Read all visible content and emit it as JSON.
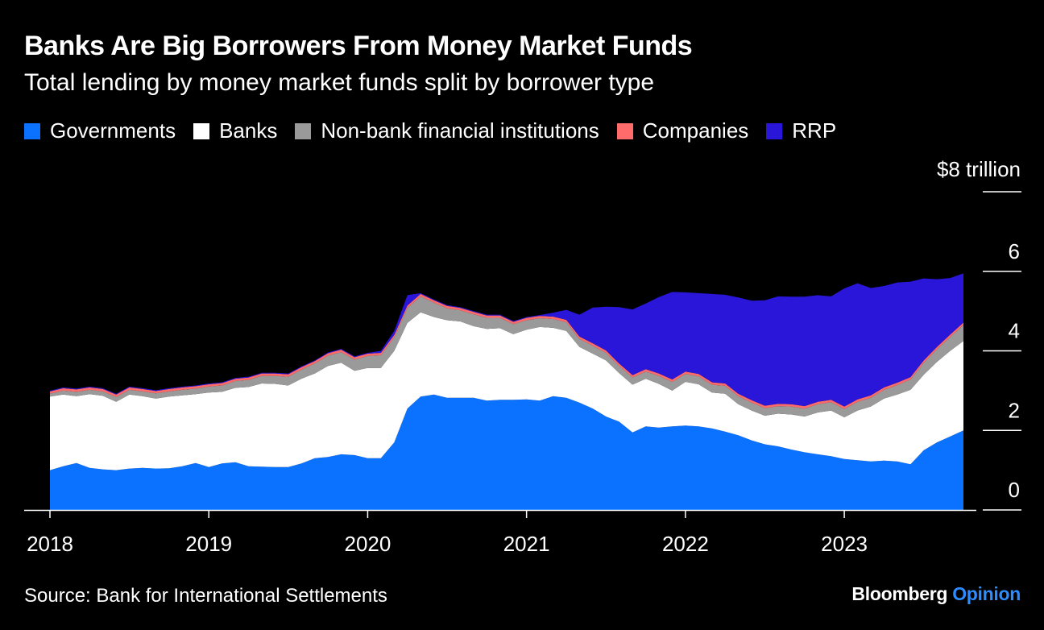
{
  "chart_data": {
    "type": "area",
    "stacked": true,
    "title": "Banks Are Big Borrowers From Money Market Funds",
    "subtitle": "Total lending by money market funds split by borrower type",
    "unit_label": "$8 trillion",
    "ylim": [
      0,
      8
    ],
    "yticks": [
      0,
      2,
      4,
      6,
      8
    ],
    "ytick_labels": [
      "0",
      "2",
      "4",
      "",
      ""
    ],
    "ytick_label_values": [
      0,
      2,
      4,
      6
    ],
    "ytick_label_texts": [
      "0",
      "2",
      "4",
      "6"
    ],
    "xlim": [
      2018.0,
      2023.75
    ],
    "xticks": [
      2018,
      2019,
      2020,
      2021,
      2022,
      2023
    ],
    "xtick_labels": [
      "2018",
      "2019",
      "2020",
      "2021",
      "2022",
      "2023"
    ],
    "legend_position": "top",
    "grid": false,
    "x": [
      2018.0,
      2018.083,
      2018.167,
      2018.25,
      2018.333,
      2018.417,
      2018.5,
      2018.583,
      2018.667,
      2018.75,
      2018.833,
      2018.917,
      2019.0,
      2019.083,
      2019.167,
      2019.25,
      2019.333,
      2019.417,
      2019.5,
      2019.583,
      2019.667,
      2019.75,
      2019.833,
      2019.917,
      2020.0,
      2020.083,
      2020.167,
      2020.25,
      2020.333,
      2020.417,
      2020.5,
      2020.583,
      2020.667,
      2020.75,
      2020.833,
      2020.917,
      2021.0,
      2021.083,
      2021.167,
      2021.25,
      2021.333,
      2021.417,
      2021.5,
      2021.583,
      2021.667,
      2021.75,
      2021.833,
      2021.917,
      2022.0,
      2022.083,
      2022.167,
      2022.25,
      2022.333,
      2022.417,
      2022.5,
      2022.583,
      2022.667,
      2022.75,
      2022.833,
      2022.917,
      2023.0,
      2023.083,
      2023.167,
      2023.25,
      2023.333,
      2023.417,
      2023.5,
      2023.583,
      2023.667,
      2023.75
    ],
    "series": [
      {
        "name": "Governments",
        "color": "#0a72ff",
        "values": [
          1.0,
          1.1,
          1.18,
          1.06,
          1.02,
          1.0,
          1.04,
          1.06,
          1.04,
          1.05,
          1.1,
          1.18,
          1.08,
          1.17,
          1.2,
          1.1,
          1.09,
          1.08,
          1.08,
          1.17,
          1.3,
          1.33,
          1.4,
          1.38,
          1.3,
          1.3,
          1.7,
          2.55,
          2.85,
          2.9,
          2.82,
          2.82,
          2.82,
          2.75,
          2.77,
          2.77,
          2.78,
          2.75,
          2.86,
          2.82,
          2.7,
          2.55,
          2.35,
          2.22,
          1.95,
          2.1,
          2.07,
          2.1,
          2.12,
          2.1,
          2.05,
          1.97,
          1.88,
          1.75,
          1.65,
          1.6,
          1.52,
          1.45,
          1.4,
          1.35,
          1.28,
          1.25,
          1.22,
          1.24,
          1.22,
          1.15,
          1.5,
          1.7,
          1.85,
          2.0
        ]
      },
      {
        "name": "Banks",
        "color": "#ffffff",
        "values": [
          1.85,
          1.8,
          1.68,
          1.85,
          1.85,
          1.72,
          1.86,
          1.8,
          1.76,
          1.8,
          1.78,
          1.73,
          1.87,
          1.8,
          1.87,
          1.99,
          2.09,
          2.09,
          2.05,
          2.13,
          2.13,
          2.29,
          2.3,
          2.12,
          2.27,
          2.27,
          2.3,
          2.15,
          2.12,
          1.95,
          1.95,
          1.92,
          1.8,
          1.8,
          1.8,
          1.65,
          1.75,
          1.85,
          1.72,
          1.68,
          1.4,
          1.38,
          1.41,
          1.22,
          1.2,
          1.2,
          1.1,
          0.9,
          1.1,
          1.06,
          0.9,
          0.95,
          0.78,
          0.75,
          0.72,
          0.82,
          0.88,
          0.9,
          1.05,
          1.15,
          1.05,
          1.25,
          1.38,
          1.56,
          1.68,
          1.87,
          1.9,
          2.02,
          2.15,
          2.25
        ]
      },
      {
        "name": "Non-bank financial institutions",
        "color": "#9a9a9a",
        "values": [
          0.07,
          0.1,
          0.11,
          0.11,
          0.11,
          0.12,
          0.12,
          0.12,
          0.13,
          0.13,
          0.14,
          0.14,
          0.15,
          0.16,
          0.17,
          0.18,
          0.19,
          0.2,
          0.22,
          0.23,
          0.25,
          0.26,
          0.27,
          0.28,
          0.3,
          0.32,
          0.34,
          0.38,
          0.4,
          0.36,
          0.3,
          0.28,
          0.3,
          0.28,
          0.26,
          0.25,
          0.24,
          0.22,
          0.22,
          0.22,
          0.2,
          0.2,
          0.19,
          0.18,
          0.18,
          0.18,
          0.2,
          0.22,
          0.2,
          0.2,
          0.2,
          0.2,
          0.2,
          0.2,
          0.19,
          0.19,
          0.2,
          0.2,
          0.21,
          0.21,
          0.21,
          0.22,
          0.22,
          0.22,
          0.24,
          0.26,
          0.3,
          0.32,
          0.35,
          0.4
        ]
      },
      {
        "name": "Companies",
        "color": "#ff6b6b",
        "values": [
          0.06,
          0.06,
          0.06,
          0.06,
          0.06,
          0.06,
          0.06,
          0.06,
          0.06,
          0.06,
          0.06,
          0.06,
          0.06,
          0.06,
          0.06,
          0.06,
          0.06,
          0.06,
          0.06,
          0.06,
          0.06,
          0.06,
          0.06,
          0.06,
          0.06,
          0.06,
          0.06,
          0.06,
          0.06,
          0.06,
          0.06,
          0.06,
          0.06,
          0.06,
          0.06,
          0.06,
          0.06,
          0.06,
          0.06,
          0.06,
          0.06,
          0.06,
          0.06,
          0.06,
          0.06,
          0.06,
          0.06,
          0.06,
          0.06,
          0.06,
          0.06,
          0.06,
          0.06,
          0.06,
          0.06,
          0.06,
          0.06,
          0.06,
          0.06,
          0.06,
          0.06,
          0.06,
          0.06,
          0.06,
          0.06,
          0.06,
          0.06,
          0.06,
          0.06,
          0.06
        ]
      },
      {
        "name": "RRP",
        "color": "#2a16d8",
        "values": [
          0.02,
          0.02,
          0.02,
          0.02,
          0.02,
          0.02,
          0.02,
          0.02,
          0.02,
          0.02,
          0.02,
          0.02,
          0.02,
          0.02,
          0.02,
          0.02,
          0.02,
          0.02,
          0.02,
          0.02,
          0.02,
          0.02,
          0.02,
          0.02,
          0.02,
          0.05,
          0.1,
          0.26,
          0.02,
          0.02,
          0.02,
          0.02,
          0.02,
          0.02,
          0.02,
          0.02,
          0.02,
          0.02,
          0.1,
          0.25,
          0.55,
          0.9,
          1.1,
          1.42,
          1.65,
          1.65,
          1.92,
          2.2,
          1.99,
          2.03,
          2.22,
          2.23,
          2.42,
          2.5,
          2.65,
          2.7,
          2.7,
          2.75,
          2.68,
          2.6,
          2.97,
          2.92,
          2.7,
          2.55,
          2.52,
          2.4,
          2.06,
          1.7,
          1.42,
          1.24
        ]
      }
    ]
  },
  "source": "Source: Bank for International Settlements",
  "brand": {
    "name": "Bloomberg",
    "suffix": "Opinion"
  }
}
